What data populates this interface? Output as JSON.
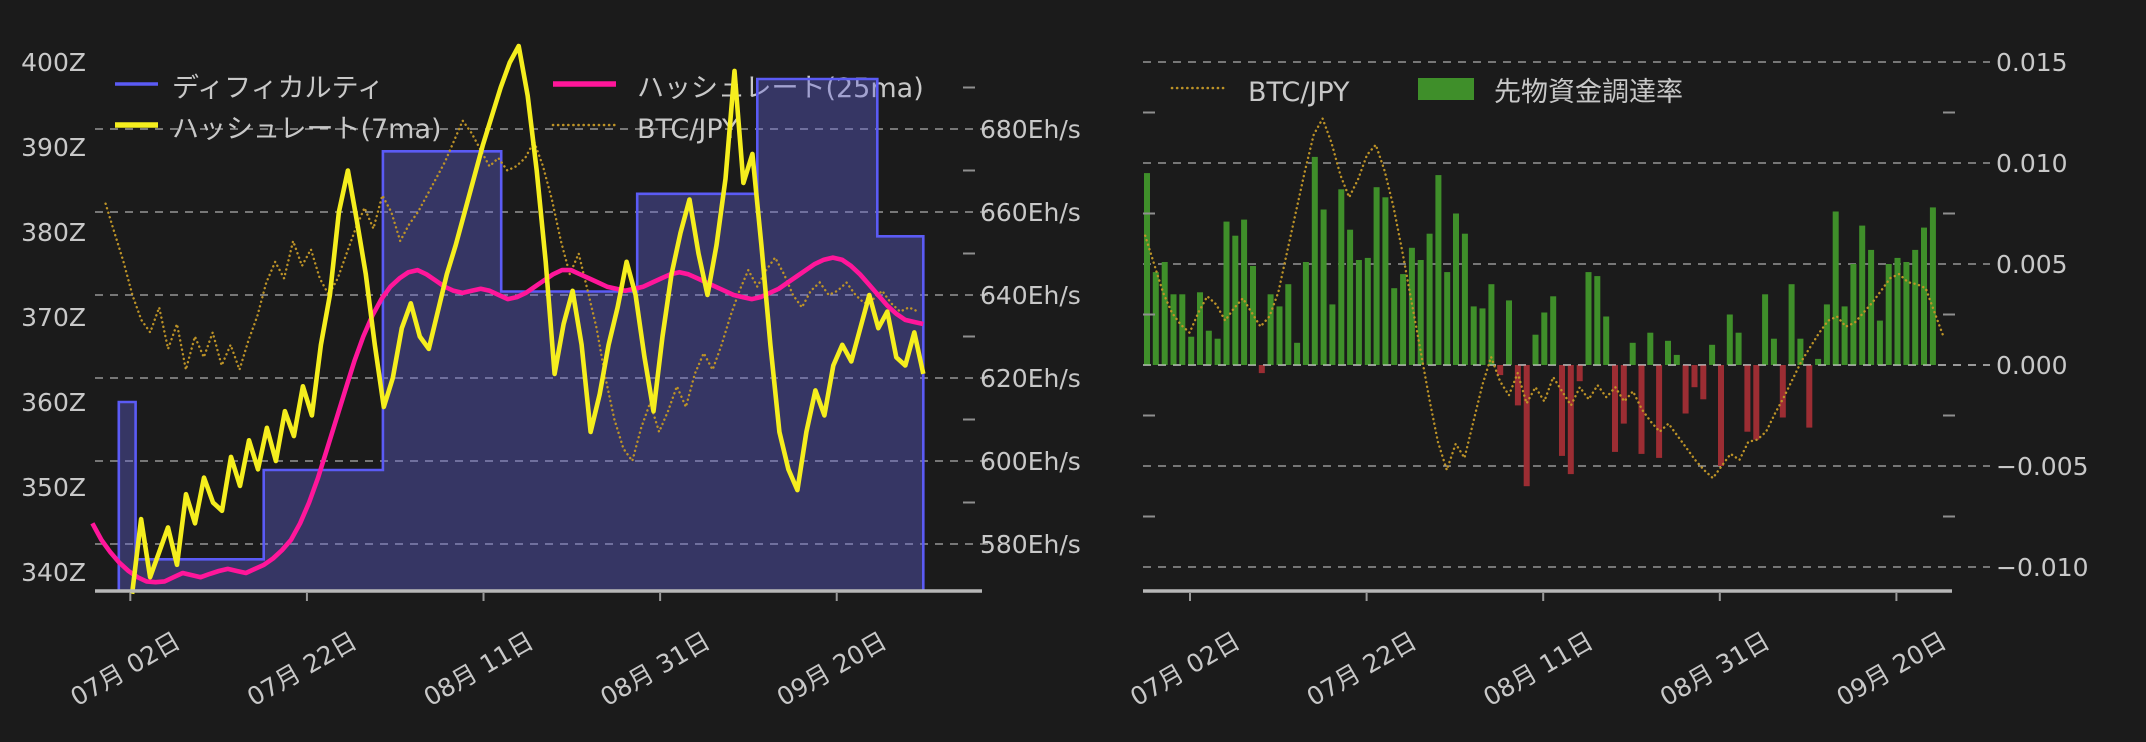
{
  "page": {
    "background": "#1b1b1b",
    "text_color": "#c8c8c8",
    "grid_color": "#e8e8e8",
    "axis_line_color": "#b8b8b8"
  },
  "chart_data": [
    {
      "id": "difficulty_hashrate_chart",
      "type": "line",
      "title": "",
      "legend": [
        {
          "label": "ディフィカルティ",
          "series": "difficulty",
          "swatch": "line",
          "color": "#5b5bf5"
        },
        {
          "label": "ハッシュレート(25ma)",
          "series": "hashrate_25ma",
          "swatch": "line",
          "color": "#ff169a"
        },
        {
          "label": "ハッシュレート(7ma)",
          "series": "hashrate_7ma",
          "swatch": "line",
          "color": "#f5ee1e"
        },
        {
          "label": "BTC/JPY",
          "series": "btc_jpy",
          "swatch": "dotted",
          "color": "#bd9327"
        }
      ],
      "x_tick_labels": [
        "07月 02日",
        "07月 22日",
        "08月 11日",
        "08月 31日",
        "09月 20日"
      ],
      "x_tick_days": [
        4,
        24,
        44,
        64,
        84
      ],
      "y_axis_left": {
        "unit": "Z",
        "tick_labels": [
          "400Z",
          "390Z",
          "380Z",
          "370Z",
          "360Z",
          "350Z",
          "340Z"
        ],
        "tick_values": [
          400,
          390,
          380,
          370,
          360,
          350,
          340
        ],
        "range": [
          336.5,
          402.5
        ]
      },
      "y_axis_right": {
        "unit": "Eh/s",
        "tick_labels": [
          "680Eh/s",
          "660Eh/s",
          "640Eh/s",
          "620Eh/s",
          "600Eh/s",
          "580Eh/s"
        ],
        "tick_values": [
          680,
          660,
          640,
          620,
          600,
          580
        ],
        "minor_tick_values": [
          690,
          670,
          650,
          630,
          610,
          590
        ],
        "range": [
          568,
          704
        ]
      },
      "grid": "horizontal dashed, right-axis scale",
      "series": {
        "difficulty_steps_Z": {
          "comment": "step area, [day_from, day_to, value in Z], day 4 = 07/02",
          "segments": [
            [
              2.7,
              4.6,
              360
            ],
            [
              4.6,
              19.1,
              341.5
            ],
            [
              19.1,
              32.6,
              352
            ],
            [
              32.6,
              46.0,
              389.5
            ],
            [
              46.0,
              61.4,
              373
            ],
            [
              61.4,
              75.0,
              384.5
            ],
            [
              75.0,
              88.6,
              398
            ],
            [
              88.6,
              93.8,
              379.5
            ]
          ],
          "fill_color": "rgba(100,100,220,0.38)",
          "line_color": "#5b5bf5"
        },
        "hashrate_7ma_EhS": {
          "day_start": 4.2,
          "day_end": 93.8,
          "color": "#f5ee1e",
          "values": [
            568,
            586,
            572,
            578,
            584,
            575,
            592,
            585,
            596,
            590,
            588,
            601,
            594,
            605,
            598,
            608,
            600,
            612,
            606,
            618,
            611,
            628,
            640,
            660,
            670,
            658,
            645,
            628,
            613,
            620,
            632,
            638,
            630,
            627,
            636,
            645,
            652,
            660,
            668,
            676,
            683,
            690,
            696,
            700,
            688,
            670,
            648,
            621,
            633,
            641,
            628,
            607,
            616,
            628,
            637,
            648,
            640,
            625,
            612,
            630,
            645,
            655,
            663,
            650,
            640,
            652,
            668,
            694,
            667,
            674,
            652,
            628,
            607,
            598,
            593,
            607,
            617,
            611,
            623,
            628,
            624,
            632,
            640,
            632,
            636,
            625,
            623,
            631,
            621
          ]
        },
        "hashrate_25ma_EhS": {
          "day_start": -0.3,
          "day_end": 93.8,
          "color": "#ff169a",
          "values": [
            585,
            581,
            578,
            575.5,
            573.5,
            572,
            571,
            570.8,
            571,
            572,
            573,
            572.5,
            572,
            572.8,
            573.5,
            574,
            573.5,
            573,
            574,
            575,
            576.5,
            578.5,
            581,
            585,
            590,
            596,
            603,
            610,
            617,
            624,
            630,
            635,
            639,
            642,
            644,
            645.5,
            646,
            645,
            643.5,
            642,
            641,
            640.5,
            641,
            641.5,
            641,
            640,
            639,
            639.5,
            640.5,
            642,
            643.5,
            645,
            646,
            646,
            645,
            644,
            643,
            642,
            641.5,
            641,
            641.5,
            642,
            643,
            644,
            645,
            645.5,
            645,
            644,
            643,
            642,
            641,
            640,
            639.5,
            639,
            639.5,
            640.5,
            641.5,
            643,
            644.5,
            646,
            647.5,
            648.5,
            649,
            648.5,
            647,
            645,
            642.5,
            640,
            637.5,
            635.5,
            634,
            633.5,
            633
          ]
        },
        "btc_jpy_overlay_on_EhS_axis": {
          "comment": "BTC/JPY price overlay, no own axis; values given in Eh/s-axis units as plotted",
          "day_start": 1.2,
          "day_end": 93.2,
          "color": "#bd9327",
          "values": [
            662,
            655,
            648,
            640,
            634,
            631,
            637,
            627,
            633,
            622,
            630,
            625,
            631,
            623,
            628,
            622,
            629,
            635,
            643,
            648,
            644,
            653,
            647,
            651,
            644,
            640,
            644,
            650,
            656,
            661,
            656,
            664,
            660,
            653,
            657,
            660,
            664,
            668,
            672,
            677,
            682,
            679,
            675,
            671,
            673,
            670,
            671,
            673,
            677,
            671,
            663,
            653,
            645,
            650,
            641,
            632,
            620,
            610,
            603,
            600,
            608,
            614,
            607,
            612,
            618,
            613,
            621,
            626,
            622,
            628,
            635,
            641,
            646,
            642,
            646,
            649,
            645,
            640,
            637,
            641,
            643,
            640,
            641,
            643,
            640,
            638,
            639,
            641,
            638,
            636,
            637,
            636
          ]
        }
      }
    },
    {
      "id": "funding_rate_chart",
      "type": "bar",
      "title": "",
      "legend": [
        {
          "label": "BTC/JPY",
          "series": "btc_jpy",
          "swatch": "dotted",
          "color": "#bd9327"
        },
        {
          "label": "先物資金調達率",
          "series": "funding_rate",
          "swatch": "box",
          "color": "#3f8f2a"
        }
      ],
      "x_tick_labels": [
        "07月 02日",
        "07月 22日",
        "08月 11日",
        "08月 31日",
        "09月 20日"
      ],
      "x_tick_days": [
        4.87,
        24.87,
        44.87,
        64.87,
        84.87
      ],
      "y_axis_right": {
        "unit": "",
        "tick_labels": [
          "0.015",
          "0.010",
          "0.005",
          "0.000",
          "−0.005",
          "−0.010"
        ],
        "tick_values": [
          0.015,
          0.01,
          0.005,
          0,
          -0.005,
          -0.01
        ],
        "minor_tick_values": [
          0.0125,
          0.0075,
          0.0025,
          -0.0025,
          -0.0075
        ],
        "range": [
          -0.0112,
          0.015
        ]
      },
      "grid": "horizontal dashed",
      "series": {
        "funding_rate": {
          "day_start": 0,
          "day_step": 1,
          "positive_color": "#3f8f2a",
          "negative_color": "#9c2d33",
          "values": [
            0.0095,
            0.0046,
            0.0051,
            0.0035,
            0.0035,
            0.0014,
            0.0036,
            0.0017,
            0.0013,
            0.0071,
            0.0064,
            0.0072,
            0.0049,
            -0.0004,
            0.0035,
            0.0029,
            0.004,
            0.0011,
            0.0051,
            0.0103,
            0.0077,
            0.003,
            0.0087,
            0.0067,
            0.0052,
            0.0053,
            0.0088,
            0.0083,
            0.0038,
            0.0045,
            0.0058,
            0.0052,
            0.0065,
            0.0094,
            0.0046,
            0.0075,
            0.0065,
            0.0029,
            0.0028,
            0.004,
            -0.0005,
            0.0032,
            -0.002,
            -0.006,
            0.0015,
            0.0026,
            0.0034,
            -0.0045,
            -0.0054,
            -0.0008,
            0.0046,
            0.0044,
            0.0024,
            -0.0043,
            -0.0029,
            0.0011,
            -0.0044,
            0.0016,
            -0.0046,
            0.0012,
            0.0005,
            -0.0024,
            -0.0011,
            -0.0017,
            0.001,
            -0.005,
            0.0025,
            0.0016,
            -0.0033,
            -0.0037,
            0.0035,
            0.0013,
            -0.0026,
            0.004,
            0.0013,
            -0.0031,
            0.0003,
            0.003,
            0.0076,
            0.0029,
            0.005,
            0.0069,
            0.0057,
            0.0022,
            0.005,
            0.0053,
            0.0051,
            0.0057,
            0.0068,
            0.0078
          ]
        },
        "btc_jpy_overlay_on_rate_axis": {
          "comment": "BTC/JPY price overlay, no own axis; values in funding-rate-axis units as plotted",
          "day_start": -0.2,
          "day_end": 90.2,
          "color": "#bd9327",
          "values": [
            0.0064,
            0.005,
            0.0036,
            0.0026,
            0.002,
            0.0016,
            0.0026,
            0.0034,
            0.003,
            0.0022,
            0.0028,
            0.0033,
            0.0026,
            0.0019,
            0.0024,
            0.0036,
            0.0056,
            0.0076,
            0.0096,
            0.0114,
            0.0122,
            0.011,
            0.0094,
            0.0083,
            0.0092,
            0.0104,
            0.0109,
            0.0096,
            0.0078,
            0.0056,
            0.0032,
            0.0008,
            -0.0016,
            -0.0038,
            -0.0052,
            -0.0039,
            -0.0046,
            -0.0028,
            -0.001,
            0.0004,
            -0.0008,
            -0.0015,
            -0.0004,
            -0.0019,
            -0.0011,
            -0.0018,
            -0.0006,
            -0.0013,
            -0.002,
            -0.0011,
            -0.0017,
            -0.001,
            -0.0016,
            -0.0011,
            -0.0018,
            -0.0013,
            -0.0022,
            -0.0028,
            -0.0033,
            -0.0029,
            -0.0035,
            -0.0041,
            -0.0047,
            -0.0052,
            -0.0056,
            -0.005,
            -0.0044,
            -0.0047,
            -0.0038,
            -0.0037,
            -0.0033,
            -0.0024,
            -0.0016,
            -0.0007,
            0.0002,
            0.0009,
            0.0016,
            0.0022,
            0.0024,
            0.0019,
            0.0021,
            0.0026,
            0.0031,
            0.0037,
            0.0043,
            0.0045,
            0.0041,
            0.004,
            0.0038,
            0.0026,
            0.0014
          ]
        }
      }
    }
  ]
}
